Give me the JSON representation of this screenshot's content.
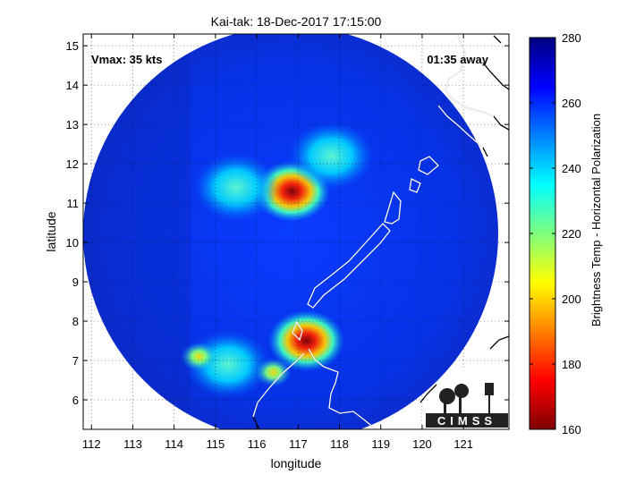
{
  "chart_data": {
    "type": "heatmap",
    "title": "Kai-tak: 18-Dec-2017 17:15:00",
    "xlabel": "longitude",
    "ylabel": "latitude",
    "xlim": [
      111.8,
      122.1
    ],
    "ylim": [
      5.25,
      15.3
    ],
    "xticks": [
      112,
      113,
      114,
      115,
      116,
      117,
      118,
      119,
      120,
      121
    ],
    "yticks": [
      6,
      7,
      8,
      9,
      10,
      11,
      12,
      13,
      14,
      15
    ],
    "grid": true,
    "annotations": {
      "vmax": "Vmax: 35 kts",
      "time_away": "01:35 away"
    },
    "colorbar": {
      "label": "Brightness Temp - Horizontal Polarization",
      "range": [
        160,
        280
      ],
      "ticks": [
        160,
        180,
        200,
        220,
        240,
        260,
        280
      ],
      "colormap": "jet",
      "colors": [
        "#7f0000",
        "#ff0000",
        "#ffff00",
        "#00ffff",
        "#0000ff",
        "#00007f"
      ]
    },
    "swath": {
      "center_lon": 116.82,
      "center_lat": 10.22,
      "background_temp": 270,
      "cold_cores": [
        {
          "lon": 116.85,
          "lat": 11.3,
          "min_temp": 170
        },
        {
          "lon": 117.2,
          "lat": 7.5,
          "min_temp": 172
        },
        {
          "lon": 117.8,
          "lat": 12.2,
          "min_temp": 240
        },
        {
          "lon": 115.5,
          "lat": 11.4,
          "min_temp": 245
        },
        {
          "lon": 115.3,
          "lat": 6.9,
          "min_temp": 230
        },
        {
          "lon": 116.4,
          "lat": 6.7,
          "min_temp": 210
        },
        {
          "lon": 114.6,
          "lat": 7.1,
          "min_temp": 205
        }
      ]
    }
  },
  "logo": {
    "text": "CIMSS"
  }
}
